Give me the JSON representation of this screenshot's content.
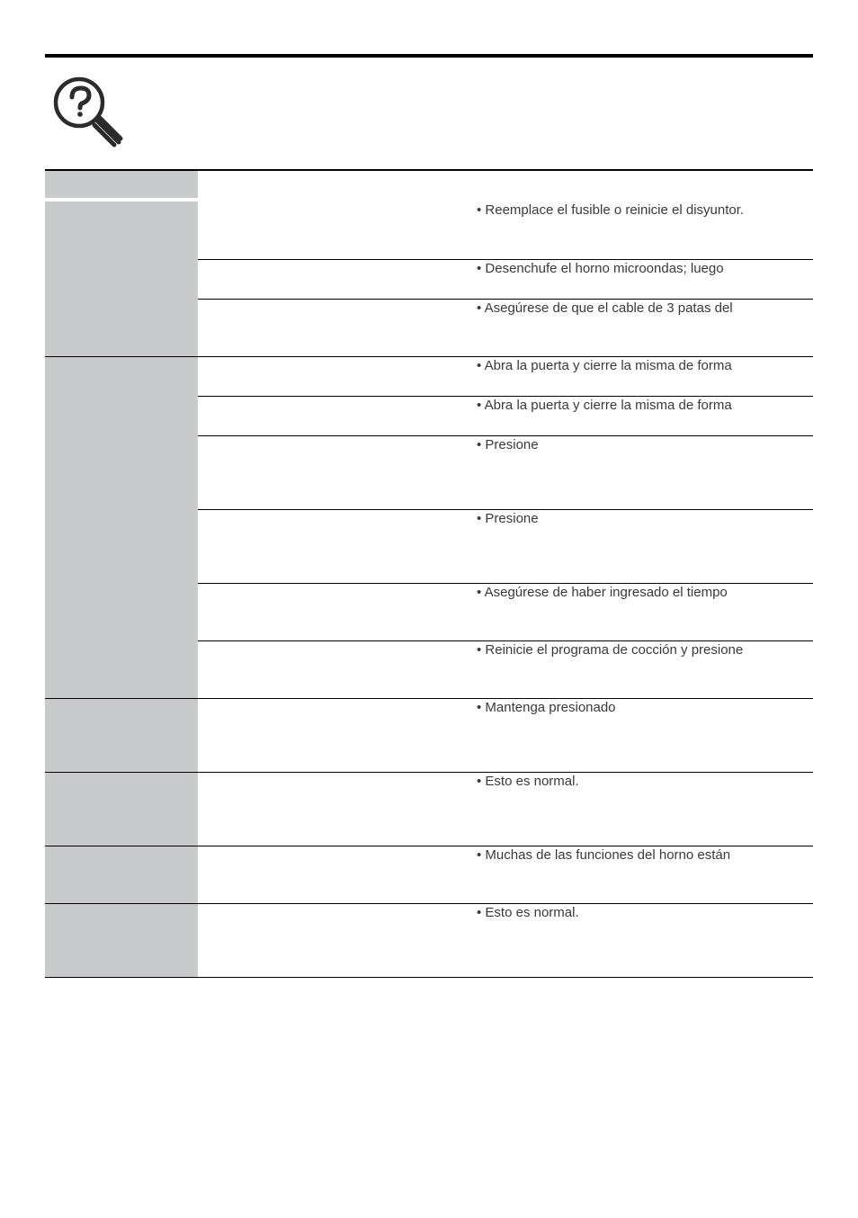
{
  "icon_name": "question-magnifier-icon",
  "colors": {
    "page_bg": "#ffffff",
    "left_col_bg": "#c9cacb",
    "rule": "#000000",
    "text": "#3a3a3a"
  },
  "rows": [
    {
      "group_end": false,
      "h": "med",
      "fix": "• Reemplace el fusible o reinicie el disyuntor."
    },
    {
      "group_end": false,
      "h": "short",
      "fix": "• Desenchufe el horno microondas; luego"
    },
    {
      "group_end": true,
      "h": "med",
      "fix": "• Asegúrese de que el cable de 3 patas del"
    },
    {
      "group_end": false,
      "h": "short",
      "fix": "• Abra la puerta y cierre la misma de forma"
    },
    {
      "group_end": false,
      "h": "short",
      "fix": "• Abra la puerta y cierre la misma de forma"
    },
    {
      "group_end": false,
      "h": "tall",
      "fix": "• Presione"
    },
    {
      "group_end": false,
      "h": "tall",
      "fix": "• Presione"
    },
    {
      "group_end": false,
      "h": "med",
      "fix": "• Asegúrese de haber ingresado el tiempo"
    },
    {
      "group_end": true,
      "h": "med",
      "fix": "• Reinicie el programa de cocción y presione"
    },
    {
      "group_end": true,
      "h": "tall",
      "fix": "• Mantenga presionado"
    },
    {
      "group_end": true,
      "h": "tall",
      "fix": "•  Esto es normal."
    },
    {
      "group_end": true,
      "h": "med",
      "fix": "• Muchas de las funciones del horno están"
    },
    {
      "group_end": true,
      "h": "tall",
      "fix": "•  Esto es normal."
    }
  ],
  "footer": ""
}
